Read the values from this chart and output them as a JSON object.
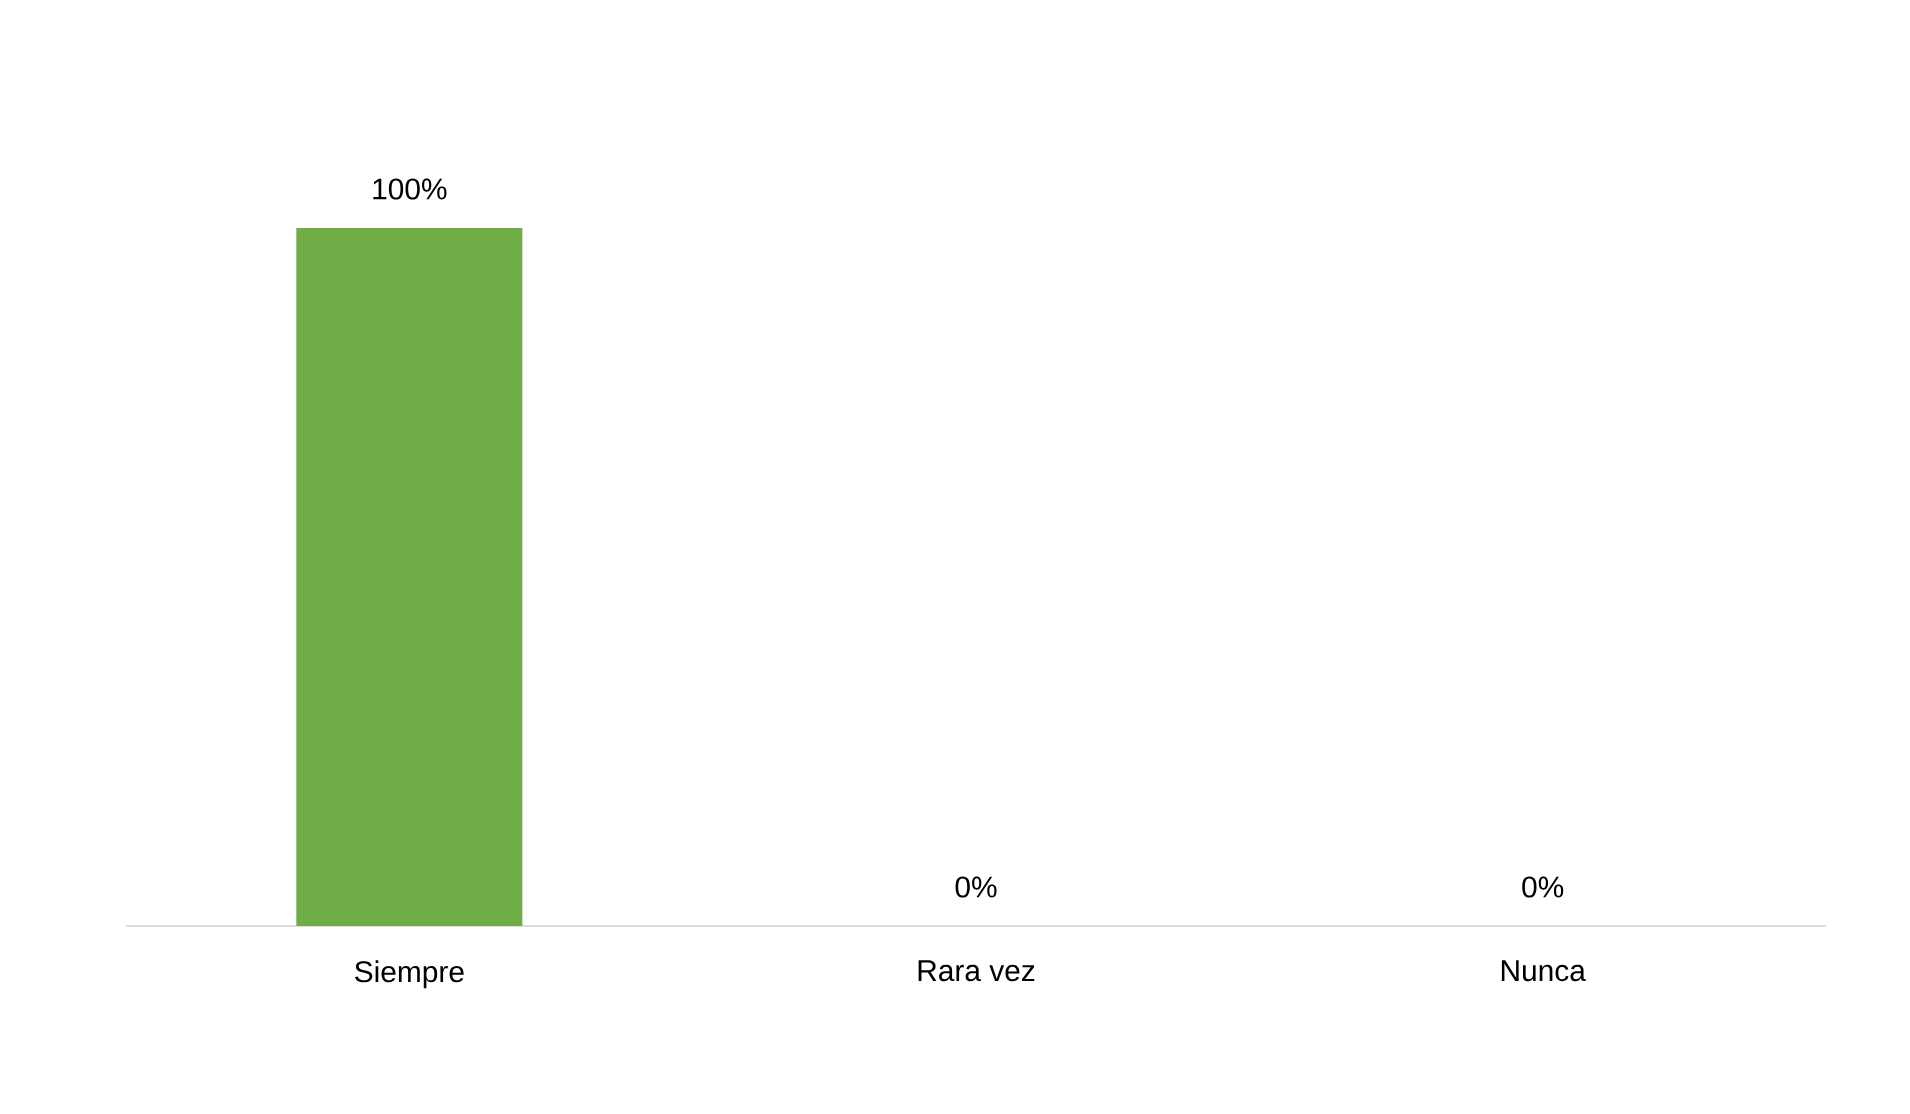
{
  "chart_data": {
    "type": "bar",
    "categories": [
      "Siempre",
      "Rara vez",
      "Nunca"
    ],
    "values": [
      100,
      0,
      0
    ],
    "value_labels": [
      "100%",
      "0%",
      "0%"
    ],
    "color": "#70ad47"
  }
}
